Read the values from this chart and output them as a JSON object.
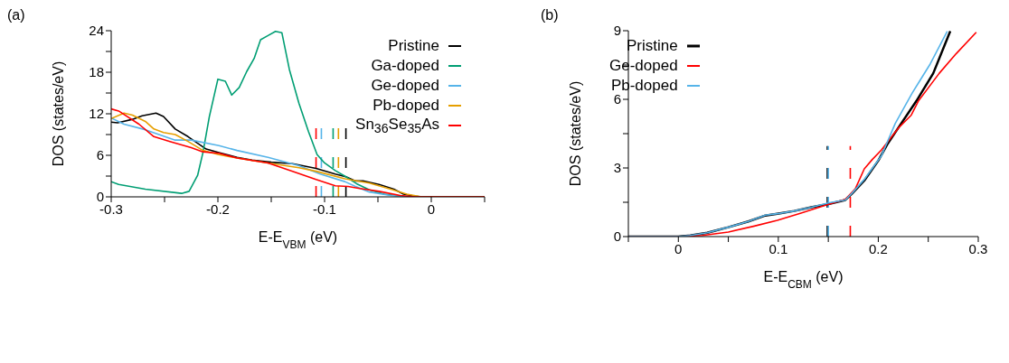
{
  "chart_data": [
    {
      "type": "line",
      "title": "(a)",
      "xlabel": "E-E$_{VBM}$ (eV)",
      "ylabel": "DOS (states/eV)",
      "xlim": [
        -0.3,
        0.05
      ],
      "ylim": [
        0,
        24
      ],
      "xticks": [
        -0.3,
        {
          "value": -0.25,
          "label": null
        },
        -0.2,
        {
          "value": -0.15,
          "label": null
        },
        -0.1,
        {
          "value": -0.05,
          "label": null
        },
        0,
        {
          "value": 0.05,
          "label": null
        }
      ],
      "yticks": [
        0,
        {
          "value": 3,
          "label": null
        },
        6,
        {
          "value": 9,
          "label": null
        },
        12,
        {
          "value": 15,
          "label": null
        },
        18,
        {
          "value": 21,
          "label": null
        },
        24
      ],
      "legend": "top right",
      "series": [
        {
          "name": "Pristine",
          "color": "#000000",
          "x": [
            -0.3,
            -0.294,
            -0.28,
            -0.271,
            -0.258,
            -0.251,
            -0.24,
            -0.228,
            -0.211,
            -0.199,
            -0.182,
            -0.168,
            -0.15,
            -0.13,
            -0.108,
            -0.09,
            -0.08,
            -0.071,
            -0.064,
            -0.049,
            -0.035,
            -0.026,
            -0.015,
            -0.009,
            0.05
          ],
          "values": [
            10.8,
            10.7,
            11.2,
            11.7,
            12.1,
            11.6,
            9.8,
            8.7,
            6.9,
            6.4,
            5.7,
            5.3,
            5.0,
            4.8,
            4.1,
            3.3,
            2.9,
            2.3,
            2.3,
            1.8,
            1.1,
            0.4,
            0.1,
            0,
            0
          ]
        },
        {
          "name": "Ga-doped",
          "color": "#009e73",
          "x": [
            -0.3,
            -0.293,
            -0.268,
            -0.234,
            -0.227,
            -0.219,
            -0.214,
            -0.208,
            -0.2,
            -0.193,
            -0.187,
            -0.18,
            -0.173,
            -0.166,
            -0.16,
            -0.153,
            -0.146,
            -0.14,
            -0.133,
            -0.124,
            -0.115,
            -0.107,
            -0.1,
            -0.09,
            -0.08,
            -0.07,
            -0.058,
            -0.044,
            -0.029
          ],
          "values": [
            2.2,
            1.8,
            1.1,
            0.5,
            0.8,
            3.1,
            6.4,
            11.6,
            17.0,
            16.7,
            14.7,
            15.8,
            18.1,
            20.0,
            22.7,
            23.3,
            23.9,
            23.7,
            18.4,
            13.5,
            9.4,
            6.1,
            4.9,
            3.8,
            2.9,
            1.9,
            1.0,
            0.4,
            0.1
          ]
        },
        {
          "name": "Ge-doped",
          "color": "#56b4e9",
          "x": [
            -0.3,
            -0.288,
            -0.268,
            -0.24,
            -0.225,
            -0.199,
            -0.182,
            -0.153,
            -0.124,
            -0.104,
            -0.081,
            -0.071,
            -0.058,
            -0.038,
            -0.02,
            0.05
          ],
          "values": [
            11.4,
            10.5,
            9.7,
            8.2,
            8.2,
            7.4,
            6.7,
            5.7,
            4.5,
            3.3,
            2.2,
            1.5,
            0.7,
            0.2,
            0,
            0
          ]
        },
        {
          "name": "Pb-doped",
          "color": "#e69f00",
          "x": [
            -0.3,
            -0.288,
            -0.28,
            -0.268,
            -0.26,
            -0.251,
            -0.24,
            -0.228,
            -0.214,
            -0.199,
            -0.182,
            -0.153,
            -0.124,
            -0.108,
            -0.081,
            -0.058,
            -0.038,
            -0.023,
            -0.009,
            0.05
          ],
          "values": [
            11.3,
            12.1,
            11.8,
            10.9,
            9.8,
            9.3,
            9.0,
            8.0,
            6.7,
            6.1,
            5.6,
            4.9,
            4.2,
            3.7,
            2.6,
            2.0,
            1.1,
            0.4,
            0,
            0
          ]
        },
        {
          "name": "Sn$_{36}$Se$_{35}$As",
          "color": "#ff0000",
          "x": [
            -0.3,
            -0.293,
            -0.274,
            -0.26,
            -0.245,
            -0.225,
            -0.214,
            -0.199,
            -0.182,
            -0.153,
            -0.13,
            -0.108,
            -0.09,
            -0.078,
            -0.067,
            -0.049,
            -0.029,
            -0.015,
            0.05
          ],
          "values": [
            12.7,
            12.4,
            10.5,
            8.7,
            8.0,
            7.1,
            6.5,
            6.3,
            5.6,
            4.9,
            3.7,
            2.5,
            1.6,
            1.5,
            1.2,
            0.8,
            0.2,
            0,
            0
          ]
        }
      ],
      "ref_lines": [
        {
          "axis": "x",
          "value": -0.108,
          "color": "#ff0000",
          "line_style": "dashed"
        },
        {
          "axis": "x",
          "value": -0.103,
          "color": "#56b4e9",
          "line_style": "dashed"
        },
        {
          "axis": "x",
          "value": -0.092,
          "color": "#009e73",
          "line_style": "dashed"
        },
        {
          "axis": "x",
          "value": -0.087,
          "color": "#e69f00",
          "line_style": "dashed"
        },
        {
          "axis": "x",
          "value": -0.08,
          "color": "#000000",
          "line_style": "dashed"
        }
      ]
    },
    {
      "type": "line",
      "title": "(b)",
      "xlabel": "E-E$_{CBM}$ (eV)",
      "ylabel": "DOS (states/eV)",
      "xlim": [
        -0.05,
        0.3
      ],
      "ylim": [
        0,
        9
      ],
      "xticks": [
        {
          "value": -0.05,
          "label": null
        },
        0,
        {
          "value": 0.05,
          "label": null
        },
        0.1,
        {
          "value": 0.15,
          "label": null
        },
        0.2,
        {
          "value": 0.25,
          "label": null
        },
        0.3
      ],
      "yticks": [
        0,
        {
          "value": 1.5,
          "label": null
        },
        3,
        {
          "value": 4.5,
          "label": null
        },
        6,
        {
          "value": 7.5,
          "label": null
        },
        9
      ],
      "legend": "top left",
      "series": [
        {
          "name": "Pristine",
          "color": "#000000",
          "x": [
            -0.05,
            0,
            0.012,
            0.029,
            0.05,
            0.07,
            0.087,
            0.099,
            0.116,
            0.133,
            0.151,
            0.167,
            0.174,
            0.186,
            0.2,
            0.209,
            0.223,
            0.238,
            0.255,
            0.272
          ],
          "values": [
            0,
            0,
            0.05,
            0.17,
            0.41,
            0.66,
            0.92,
            1.0,
            1.12,
            1.28,
            1.43,
            1.6,
            1.89,
            2.45,
            3.32,
            4.03,
            4.95,
            5.92,
            7.14,
            8.98
          ]
        },
        {
          "name": "Ge-doped",
          "color": "#ff0000",
          "x": [
            -0.05,
            0,
            0.024,
            0.05,
            0.076,
            0.099,
            0.122,
            0.148,
            0.167,
            0.177,
            0.186,
            0.194,
            0.203,
            0.22,
            0.233,
            0.24,
            0.261,
            0.278,
            0.298
          ],
          "values": [
            0,
            0,
            0.05,
            0.2,
            0.46,
            0.71,
            1.02,
            1.38,
            1.63,
            2.09,
            2.96,
            3.37,
            3.78,
            4.74,
            5.31,
            5.92,
            7.14,
            8.0,
            8.93
          ]
        },
        {
          "name": "Pb-doped",
          "color": "#56b4e9",
          "x": [
            -0.05,
            0,
            0.012,
            0.029,
            0.05,
            0.07,
            0.087,
            0.099,
            0.116,
            0.133,
            0.151,
            0.167,
            0.174,
            0.186,
            0.203,
            0.217,
            0.234,
            0.252,
            0.269
          ],
          "values": [
            0,
            0,
            0.05,
            0.17,
            0.41,
            0.66,
            0.94,
            1.0,
            1.12,
            1.28,
            1.48,
            1.6,
            1.91,
            2.5,
            3.52,
            4.95,
            6.28,
            7.55,
            8.98
          ]
        }
      ],
      "ref_lines": [
        {
          "axis": "x",
          "value": 0.149,
          "color": "#000000",
          "line_style": "dashed"
        },
        {
          "axis": "x",
          "value": 0.15,
          "color": "#56b4e9",
          "line_style": "dashed"
        },
        {
          "axis": "x",
          "value": 0.172,
          "color": "#ff0000",
          "line_style": "dashed"
        }
      ]
    }
  ]
}
